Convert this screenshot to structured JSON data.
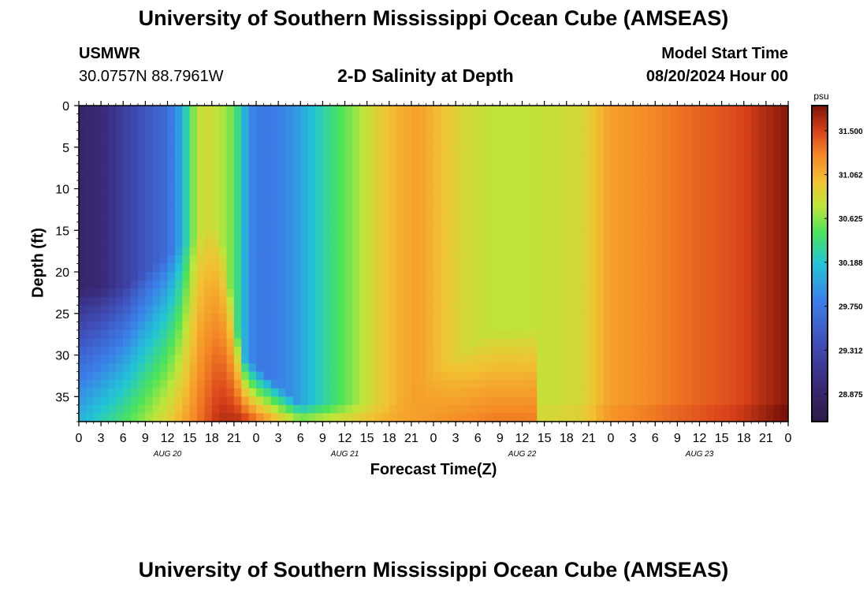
{
  "page": {
    "title_top": "University of Southern Mississippi Ocean Cube (AMSEAS)",
    "title_bottom": "University of Southern Mississippi Ocean Cube (AMSEAS)",
    "station_id": "USMWR",
    "coords": "30.0757N  88.7961W",
    "plot_title": "2-D Salinity at Depth",
    "model_start_label": "Model Start Time",
    "model_start_value": "08/20/2024 Hour 00"
  },
  "chart_data": {
    "type": "heatmap",
    "title": "2-D Salinity at Depth",
    "xlabel": "Forecast Time(Z)",
    "ylabel": "Depth (ft)",
    "x_range_hours": [
      0,
      96
    ],
    "y_range_ft": [
      0,
      38
    ],
    "y_inverted": true,
    "x_tick_labels": [
      "0",
      "3",
      "6",
      "9",
      "12",
      "15",
      "18",
      "21",
      "0",
      "3",
      "6",
      "9",
      "12",
      "15",
      "18",
      "21",
      "0",
      "3",
      "6",
      "9",
      "12",
      "15",
      "18",
      "21",
      "0",
      "3",
      "6",
      "9",
      "12",
      "15",
      "18",
      "21",
      "0"
    ],
    "day_labels": [
      "AUG 20",
      "AUG 21",
      "AUG 22",
      "AUG 23"
    ],
    "y_tick_labels": [
      "0",
      "5",
      "10",
      "15",
      "20",
      "25",
      "30",
      "35"
    ],
    "colorbar": {
      "unit": "psu",
      "vmin": 28.6,
      "vmax": 31.75,
      "tick_values": [
        31.5,
        31.062,
        30.625,
        30.188,
        29.75,
        29.312,
        28.875
      ],
      "tick_labels": [
        "31.500",
        "31.062",
        "30.625",
        "30.188",
        "29.750",
        "29.312",
        "28.875"
      ]
    },
    "surface_salinity_profile": {
      "hours": [
        0,
        3,
        6,
        9,
        12,
        14,
        15,
        16,
        17,
        19,
        21,
        22,
        23,
        24,
        27,
        29,
        32,
        35,
        38,
        41,
        44,
        46,
        48,
        52,
        56,
        60,
        64,
        68,
        72,
        76,
        80,
        84,
        88,
        90,
        92,
        94,
        96
      ],
      "psu": [
        28.85,
        28.95,
        29.2,
        29.45,
        29.65,
        30.05,
        30.45,
        30.75,
        30.85,
        30.75,
        30.55,
        30.2,
        29.9,
        29.75,
        29.8,
        29.9,
        30.2,
        30.45,
        30.7,
        30.95,
        31.1,
        31.15,
        31.05,
        30.85,
        30.75,
        30.75,
        30.8,
        30.85,
        31.15,
        31.22,
        31.3,
        31.38,
        31.45,
        31.5,
        31.58,
        31.65,
        31.72
      ]
    },
    "depth_features": [
      {
        "hour": 0,
        "psu_at_bottom": 30.1,
        "onset_depth_ft": 22
      },
      {
        "hour": 6,
        "psu_at_bottom": 30.45,
        "onset_depth_ft": 22
      },
      {
        "hour": 12,
        "psu_at_bottom": 30.9,
        "onset_depth_ft": 18
      },
      {
        "hour": 19,
        "psu_at_bottom": 31.6,
        "onset_depth_ft": 14
      },
      {
        "hour": 22,
        "psu_at_bottom": 31.6,
        "onset_depth_ft": 30
      },
      {
        "hour": 30,
        "psu_at_bottom": 30.7,
        "onset_depth_ft": 36
      },
      {
        "hour": 42,
        "psu_at_bottom": 31.1,
        "onset_depth_ft": 36
      },
      {
        "hour": 56,
        "psu_at_bottom": 31.3,
        "onset_depth_ft": 27
      }
    ]
  }
}
